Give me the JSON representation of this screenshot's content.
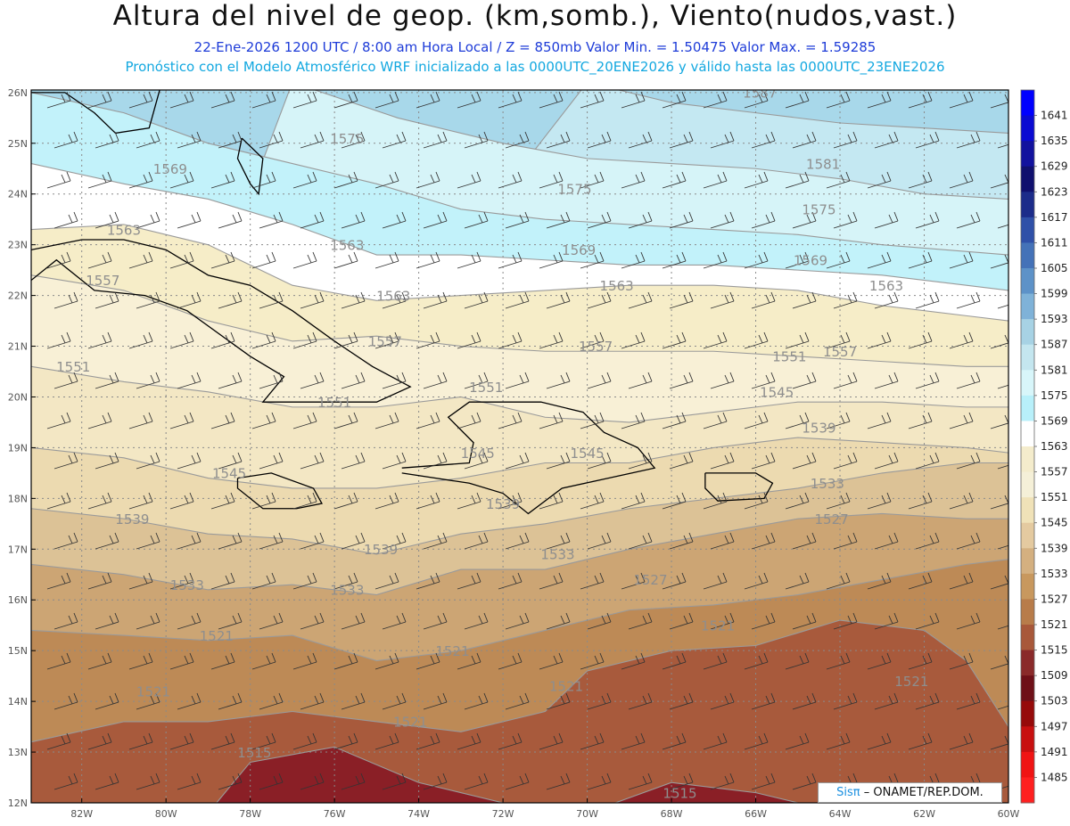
{
  "header": {
    "title": "Altura del nivel de geop. (km,somb.), Viento(nudos,vast.)",
    "line1": "22-Ene-2026  1200 UTC / 8:00 am Hora Local / Z = 850mb     Valor Min. = 1.50475  Valor Max. = 1.59285",
    "line2": "Pronóstico con el Modelo Atmosférico WRF inicializado a las 0000UTC_20ENE2026 y válido hasta las  0000UTC_23ENE2026"
  },
  "map": {
    "lat_labels": [
      "26N",
      "25N",
      "24N",
      "23N",
      "22N",
      "21N",
      "20N",
      "19N",
      "18N",
      "17N",
      "16N",
      "15N",
      "14N",
      "13N",
      "12N"
    ],
    "lon_labels": [
      "82W",
      "80W",
      "78W",
      "76W",
      "74W",
      "72W",
      "70W",
      "68W",
      "66W",
      "64W",
      "62W",
      "60W"
    ],
    "contour_labels": [
      {
        "text": "1587",
        "lon": -65.9,
        "lat": 25.9
      },
      {
        "text": "1581",
        "lon": -64.4,
        "lat": 24.5
      },
      {
        "text": "1575",
        "lon": -75.7,
        "lat": 25.0
      },
      {
        "text": "1575",
        "lon": -70.3,
        "lat": 24.0
      },
      {
        "text": "1575",
        "lon": -64.5,
        "lat": 23.6
      },
      {
        "text": "1569",
        "lon": -79.9,
        "lat": 24.4
      },
      {
        "text": "1569",
        "lon": -70.2,
        "lat": 22.8
      },
      {
        "text": "1569",
        "lon": -64.7,
        "lat": 22.6
      },
      {
        "text": "1563",
        "lon": -75.7,
        "lat": 22.9
      },
      {
        "text": "1563",
        "lon": -81.0,
        "lat": 23.2
      },
      {
        "text": "1563",
        "lon": -74.6,
        "lat": 21.9
      },
      {
        "text": "1563",
        "lon": -69.3,
        "lat": 22.1
      },
      {
        "text": "1563",
        "lon": -62.9,
        "lat": 22.1
      },
      {
        "text": "1557",
        "lon": -81.5,
        "lat": 22.2
      },
      {
        "text": "1557",
        "lon": -74.8,
        "lat": 21.0
      },
      {
        "text": "1557",
        "lon": -69.8,
        "lat": 20.9
      },
      {
        "text": "1557",
        "lon": -64.0,
        "lat": 20.8
      },
      {
        "text": "1551",
        "lon": -82.2,
        "lat": 20.5
      },
      {
        "text": "1551",
        "lon": -76.0,
        "lat": 19.8
      },
      {
        "text": "1551",
        "lon": -72.4,
        "lat": 20.1
      },
      {
        "text": "1551",
        "lon": -65.2,
        "lat": 20.7
      },
      {
        "text": "1545",
        "lon": -65.5,
        "lat": 20.0
      },
      {
        "text": "1545",
        "lon": -78.5,
        "lat": 18.4
      },
      {
        "text": "1545",
        "lon": -72.6,
        "lat": 18.8
      },
      {
        "text": "1545",
        "lon": -70.0,
        "lat": 18.8
      },
      {
        "text": "1539",
        "lon": -64.5,
        "lat": 19.3
      },
      {
        "text": "1539",
        "lon": -72.0,
        "lat": 17.8
      },
      {
        "text": "1539",
        "lon": -80.8,
        "lat": 17.5
      },
      {
        "text": "1539",
        "lon": -74.9,
        "lat": 16.9
      },
      {
        "text": "1533",
        "lon": -64.3,
        "lat": 18.2
      },
      {
        "text": "1533",
        "lon": -70.7,
        "lat": 16.8
      },
      {
        "text": "1533",
        "lon": -79.5,
        "lat": 16.2
      },
      {
        "text": "1533",
        "lon": -75.7,
        "lat": 16.1
      },
      {
        "text": "1527",
        "lon": -64.2,
        "lat": 17.5
      },
      {
        "text": "1527",
        "lon": -68.5,
        "lat": 16.3
      },
      {
        "text": "1521",
        "lon": -78.8,
        "lat": 15.2
      },
      {
        "text": "1521",
        "lon": -73.2,
        "lat": 14.9
      },
      {
        "text": "1521",
        "lon": -66.9,
        "lat": 15.4
      },
      {
        "text": "1521",
        "lon": -70.5,
        "lat": 14.2
      },
      {
        "text": "1521",
        "lon": -80.3,
        "lat": 14.1
      },
      {
        "text": "1521",
        "lon": -74.2,
        "lat": 13.5
      },
      {
        "text": "1521",
        "lon": -62.3,
        "lat": 14.3
      },
      {
        "text": "1515",
        "lon": -77.9,
        "lat": 12.9
      },
      {
        "text": "1515",
        "lon": -67.8,
        "lat": 12.1
      }
    ],
    "credit_brand": "Sisπ",
    "credit_text": "– ONAMET/REP.DOM."
  },
  "colorbar": {
    "labels": [
      "1641",
      "1635",
      "1629",
      "1623",
      "1617",
      "1611",
      "1605",
      "1599",
      "1593",
      "1587",
      "1581",
      "1575",
      "1569",
      "1563",
      "1557",
      "1551",
      "1545",
      "1539",
      "1533",
      "1527",
      "1521",
      "1515",
      "1509",
      "1503",
      "1497",
      "1491",
      "1485"
    ],
    "colors": [
      "#0000ff",
      "#0a0ad2",
      "#12129e",
      "#10106e",
      "#1c2c8a",
      "#2f50a8",
      "#4472b8",
      "#5d92c8",
      "#7fb2d8",
      "#a7d2e4",
      "#c4e6ef",
      "#d8f6fa",
      "#b8f0fa",
      "#ffffff",
      "#f4eccc",
      "#f5f0d8",
      "#f0e2b8",
      "#e4caa0",
      "#d4b080",
      "#c8985e",
      "#b87c4a",
      "#a8583a",
      "#8a2a2a",
      "#6e1018",
      "#960a0a",
      "#c81010",
      "#f01414",
      "#ff2020"
    ]
  }
}
